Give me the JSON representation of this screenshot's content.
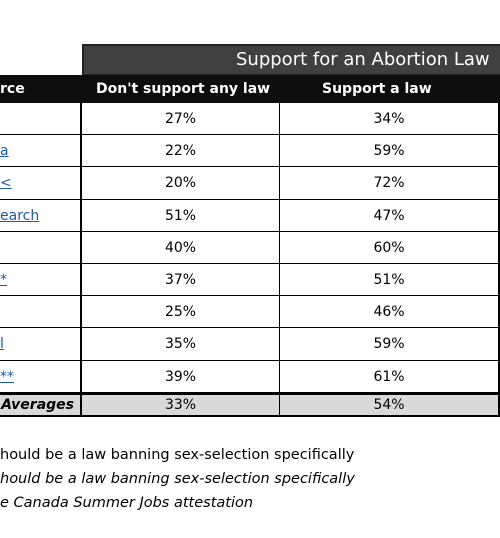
{
  "header": {
    "group": "Support for an Abortion Law",
    "columns": [
      "rce",
      "Don't support any law",
      "Support a law"
    ]
  },
  "table": {
    "rows": [
      [
        null,
        "27%",
        "34%"
      ],
      [
        "a",
        "22%",
        "59%"
      ],
      [
        "<",
        "20%",
        "72%"
      ],
      [
        "earch",
        "51%",
        "47%"
      ],
      [
        null,
        "40%",
        "60%"
      ],
      [
        "*",
        "37%",
        "51%"
      ],
      [
        null,
        "25%",
        "46%"
      ],
      [
        "l",
        "35%",
        "59%"
      ],
      [
        "**",
        "39%",
        "61%"
      ]
    ],
    "averages": [
      "Averages",
      "33%",
      "54%"
    ]
  },
  "notes": [
    "hould be a law banning sex-selection specifically",
    "hould be a law banning sex-selection specifically",
    "e Canada Summer Jobs attestation"
  ]
}
